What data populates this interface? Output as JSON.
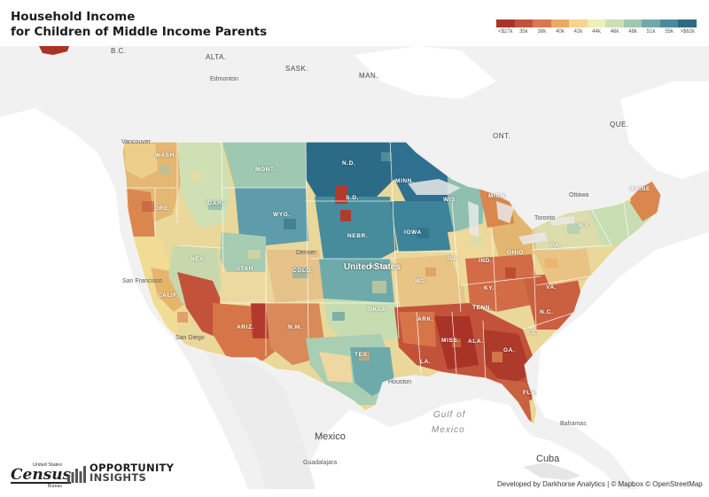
{
  "header": {
    "title_line1": "Household Income",
    "title_line2": "for Children of Middle Income Parents"
  },
  "legend": {
    "colors": [
      "#a93326",
      "#c2533a",
      "#d9784e",
      "#eda862",
      "#f6d58a",
      "#eef0b4",
      "#c9e1b4",
      "#9ec8b0",
      "#6faaaa",
      "#468c9c",
      "#2b6b86"
    ],
    "labels": [
      "<$27k",
      "35k",
      "38k",
      "40k",
      "42k",
      "44k",
      "46k",
      "48k",
      "51k",
      "55k",
      ">$62k"
    ]
  },
  "map": {
    "places": {
      "bc": "B.C.",
      "alta": "ALTA.",
      "sask": "SASK.",
      "man": "MAN.",
      "ont": "ONT.",
      "que": "QUE."
    },
    "cities": {
      "edmonton": "Edmonton",
      "vancouver": "Vancouver",
      "ottawa": "Ottawa",
      "toronto": "Toronto",
      "san_francisco": "San Francisco",
      "san_diego": "San Diego",
      "denver": "Denver",
      "houston": "Houston",
      "guadalajara": "Guadalajara",
      "bahamas": "Bahamas"
    },
    "states": {
      "wash": "WASH.",
      "ore": "ORE.",
      "calif": "CALIF.",
      "nev": "NEV.",
      "idaho": "IDAHO",
      "mont": "MONT.",
      "wyo": "WYO.",
      "utah": "UTAH",
      "ariz": "ARIZ.",
      "colo": "COLO.",
      "nm": "N.M.",
      "nd": "N.D.",
      "sd": "S.D.",
      "nebr": "NEBR.",
      "kans": "KANS.",
      "okla": "OKLA.",
      "tex": "TEX.",
      "minn": "MINN.",
      "iowa": "IOWA",
      "mo": "MO.",
      "ark": "ARK.",
      "la": "LA.",
      "wis": "WIS.",
      "ill": "ILL.",
      "mich": "MICH.",
      "ind": "IND.",
      "ohio": "OHIO",
      "ky": "KY.",
      "tenn": "TENN.",
      "miss": "MISS.",
      "ala": "ALA.",
      "ga": "GA.",
      "fla": "FLA.",
      "sc": "S.C.",
      "nc": "N.C.",
      "va": "VA.",
      "pa": "PA.",
      "ny": "N.Y.",
      "maine": "MAINE"
    },
    "countries": {
      "usa": "United States",
      "mexico": "Mexico",
      "cuba": "Cuba"
    },
    "water": {
      "gulf1": "Gulf of",
      "gulf2": "Mexico"
    }
  },
  "footer": {
    "census_top": "United States",
    "census_word": "Census",
    "census_sub": "Bureau",
    "oi_line1": "OPPORTUNITY",
    "oi_line2": "INSIGHTS",
    "attribution": "Developed by Darkhorse Analytics | © Mapbox © OpenStreetMap"
  }
}
